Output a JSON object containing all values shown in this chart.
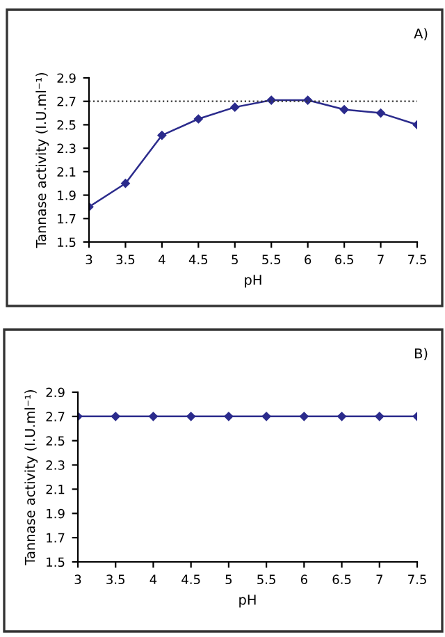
{
  "chart_data": [
    {
      "type": "line",
      "title": "A)",
      "xlabel": "pH",
      "ylabel": "Tannase activity (I.U.ml⁻¹)",
      "x": [
        3,
        3.5,
        4,
        4.5,
        5,
        5.5,
        6,
        6.5,
        7,
        7.5
      ],
      "series": [
        {
          "color": "#2b2b8c",
          "values": [
            1.8,
            2.0,
            2.41,
            2.55,
            2.65,
            2.71,
            2.71,
            2.63,
            2.6,
            2.5
          ]
        }
      ],
      "xlim": [
        3,
        7.5
      ],
      "xticks": [
        3,
        3.5,
        4,
        4.5,
        5,
        5.5,
        6,
        6.5,
        7,
        7.5
      ],
      "ylim": [
        1.5,
        2.9
      ],
      "yticks": [
        1.5,
        1.7,
        1.9,
        2.1,
        2.3,
        2.5,
        2.7,
        2.9
      ],
      "ref_lines": [
        {
          "axis": "y",
          "value": 2.7,
          "color": "#333333",
          "line_style": "dotted"
        }
      ],
      "marker": "diamond",
      "line_style": "solid",
      "grid": false,
      "legend": false
    },
    {
      "type": "line",
      "title": "B)",
      "xlabel": "pH",
      "ylabel": "Tannase activity (I.U.ml⁻¹)",
      "x": [
        3,
        3.5,
        4,
        4.5,
        5,
        5.5,
        6,
        6.5,
        7,
        7.5
      ],
      "series": [
        {
          "color": "#2b2b8c",
          "values": [
            2.7,
            2.7,
            2.7,
            2.7,
            2.7,
            2.7,
            2.7,
            2.7,
            2.7,
            2.7
          ]
        }
      ],
      "xlim": [
        3,
        7.5
      ],
      "xticks": [
        3,
        3.5,
        4,
        4.5,
        5,
        5.5,
        6,
        6.5,
        7,
        7.5
      ],
      "ylim": [
        1.5,
        2.9
      ],
      "yticks": [
        1.5,
        1.7,
        1.9,
        2.1,
        2.3,
        2.5,
        2.7,
        2.9
      ],
      "marker": "diamond",
      "line_style": "solid",
      "grid": false,
      "legend": false
    }
  ]
}
